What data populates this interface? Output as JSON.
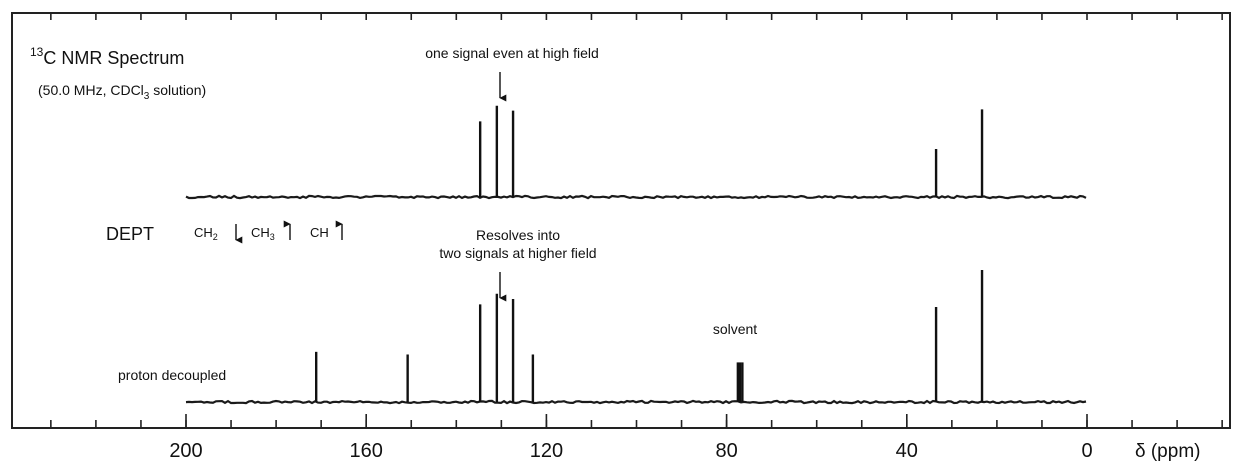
{
  "chart_data": {
    "type": "line",
    "title": "13C NMR Spectrum",
    "title_sup": "13",
    "title_main": "C NMR Spectrum",
    "subtitle_pre": "(50.0 MHz, CDCl",
    "subtitle_sub": "3",
    "subtitle_post": " solution)",
    "xlabel": "δ (ppm)",
    "xlim": [
      200,
      0
    ],
    "x_ticks": [
      200,
      160,
      120,
      80,
      40,
      0
    ],
    "grid": false,
    "series": [
      {
        "name": "DEPT",
        "peaks": [
          {
            "x": 134.7,
            "height": 0.63
          },
          {
            "x": 131.0,
            "height": 0.76
          },
          {
            "x": 127.4,
            "height": 0.72
          },
          {
            "x": 33.5,
            "height": 0.4
          },
          {
            "x": 23.3,
            "height": 0.73
          }
        ]
      },
      {
        "name": "proton decoupled",
        "peaks": [
          {
            "x": 171.1,
            "height": 0.38
          },
          {
            "x": 150.8,
            "height": 0.36
          },
          {
            "x": 134.7,
            "height": 0.74
          },
          {
            "x": 131.0,
            "height": 0.82
          },
          {
            "x": 127.4,
            "height": 0.78
          },
          {
            "x": 123.0,
            "height": 0.36
          },
          {
            "x": 77.5,
            "height": 0.3
          },
          {
            "x": 77.0,
            "height": 0.3
          },
          {
            "x": 76.5,
            "height": 0.3
          },
          {
            "x": 33.5,
            "height": 0.72
          },
          {
            "x": 23.3,
            "height": 1.0
          }
        ]
      }
    ],
    "annotations": {
      "top_arrow_label": "one signal even at high field",
      "bottom_arrow_label_1": "Resolves into",
      "bottom_arrow_label_2": "two signals at higher field",
      "solvent_label": "solvent",
      "dept_label": "DEPT",
      "dept_ch2": "CH",
      "dept_ch2_sub": "2",
      "dept_ch3": "CH",
      "dept_ch3_sub": "3",
      "dept_ch": "CH",
      "proton_label": "proton decoupled"
    }
  }
}
